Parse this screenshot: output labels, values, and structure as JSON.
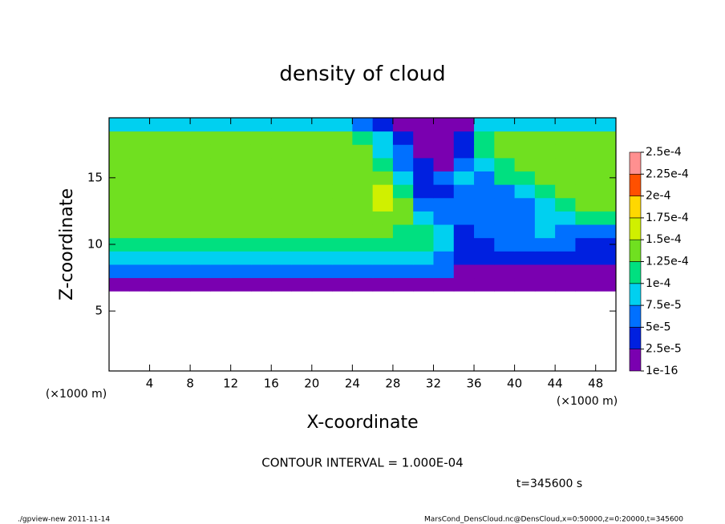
{
  "chart_data": {
    "type": "heatmap",
    "title": "density of cloud",
    "xlabel": "X-coordinate",
    "ylabel": "Z-coordinate",
    "xunit": "(×1000 m)",
    "yunit": "(×1000 m)",
    "note": "CONTOUR INTERVAL = 1.000E-04",
    "time": "t=345600 s",
    "footer_left": "./gpview-new  2011-11-14",
    "footer_right": "MarsCond_DensCloud.nc@DensCloud,x=0:50000,z=0:20000,t=345600",
    "xlim": [
      0,
      50
    ],
    "ylim": [
      0.5,
      19.5
    ],
    "xticks": [
      4,
      8,
      12,
      16,
      20,
      24,
      28,
      32,
      36,
      40,
      44,
      48
    ],
    "yticks": [
      5,
      10,
      15
    ],
    "x": [
      1,
      3,
      5,
      7,
      9,
      11,
      13,
      15,
      17,
      19,
      21,
      23,
      25,
      27,
      29,
      31,
      33,
      35,
      37,
      39,
      41,
      43,
      45,
      47,
      49
    ],
    "y": [
      7,
      8,
      9,
      10,
      11,
      12,
      13,
      14,
      15,
      16,
      17,
      18,
      19
    ],
    "values": [
      [
        1e-05,
        1e-05,
        1e-05,
        1e-05,
        1e-05,
        1e-05,
        1e-05,
        1e-05,
        1e-05,
        1e-05,
        1e-05,
        1e-05,
        1e-05,
        1e-05,
        1e-05,
        1e-05,
        1e-05,
        1e-05,
        1e-05,
        1e-05,
        1e-05,
        1e-05,
        1e-05,
        1e-05,
        1e-05
      ],
      [
        5e-05,
        5e-05,
        5e-05,
        5e-05,
        5e-05,
        5e-05,
        5e-05,
        5e-05,
        5e-05,
        5e-05,
        5e-05,
        5e-05,
        5e-05,
        5e-05,
        5e-05,
        5e-05,
        5e-05,
        2e-05,
        2e-05,
        2e-05,
        2e-05,
        2e-05,
        2e-05,
        2e-05,
        2e-05
      ],
      [
        8e-05,
        8e-05,
        8e-05,
        8e-05,
        8e-05,
        8e-05,
        8e-05,
        8e-05,
        8e-05,
        8e-05,
        8e-05,
        8e-05,
        8e-05,
        8e-05,
        8e-05,
        8e-05,
        6e-05,
        3e-05,
        4e-05,
        3e-05,
        3e-05,
        4e-05,
        3e-05,
        3e-05,
        3e-05
      ],
      [
        0.00011,
        0.00011,
        0.00011,
        0.00011,
        0.00011,
        0.00011,
        0.00011,
        0.00011,
        0.00011,
        0.00011,
        0.00011,
        0.00011,
        0.00011,
        0.00011,
        0.00011,
        0.0001,
        9e-05,
        3e-05,
        4e-05,
        5e-05,
        5e-05,
        6e-05,
        5e-05,
        4e-05,
        4e-05
      ],
      [
        0.00013,
        0.00013,
        0.00013,
        0.00013,
        0.00013,
        0.00013,
        0.00013,
        0.00013,
        0.00013,
        0.00013,
        0.00013,
        0.00013,
        0.00013,
        0.00013,
        0.00012,
        0.00012,
        8e-05,
        4e-05,
        5e-05,
        6e-05,
        6e-05,
        8e-05,
        7e-05,
        6e-05,
        7e-05
      ],
      [
        0.00013,
        0.00013,
        0.00013,
        0.00013,
        0.00013,
        0.00013,
        0.00013,
        0.00013,
        0.00013,
        0.00013,
        0.00013,
        0.00013,
        0.00013,
        0.00014,
        0.00014,
        9e-05,
        6e-05,
        6e-05,
        7e-05,
        6e-05,
        7e-05,
        9e-05,
        9e-05,
        0.0001,
        0.00012
      ],
      [
        0.00014,
        0.00014,
        0.00014,
        0.00014,
        0.00014,
        0.00014,
        0.00014,
        0.00014,
        0.00014,
        0.00014,
        0.00014,
        0.00014,
        0.00014,
        0.00016,
        0.00013,
        5e-05,
        5e-05,
        5e-05,
        6e-05,
        5e-05,
        5e-05,
        8e-05,
        0.00011,
        0.00013,
        0.00013
      ],
      [
        0.00014,
        0.00014,
        0.00014,
        0.00014,
        0.00014,
        0.00014,
        0.00014,
        0.00014,
        0.00014,
        0.00014,
        0.00014,
        0.00014,
        0.00014,
        0.00015,
        0.0001,
        3e-05,
        4e-05,
        7e-05,
        5e-05,
        6e-05,
        9e-05,
        0.00012,
        0.00013,
        0.00013,
        0.00013
      ],
      [
        0.00014,
        0.00014,
        0.00014,
        0.00014,
        0.00014,
        0.00014,
        0.00014,
        0.00014,
        0.00014,
        0.00014,
        0.00014,
        0.00014,
        0.00014,
        0.00014,
        8e-05,
        3e-05,
        5e-05,
        8e-05,
        5e-05,
        0.0001,
        0.00012,
        0.00013,
        0.00013,
        0.00013,
        0.00013
      ],
      [
        0.00014,
        0.00014,
        0.00014,
        0.00014,
        0.00014,
        0.00014,
        0.00014,
        0.00014,
        0.00014,
        0.00014,
        0.00014,
        0.00014,
        0.00014,
        0.00012,
        6e-05,
        3e-05,
        2e-05,
        6e-05,
        9e-05,
        0.00012,
        0.00013,
        0.00013,
        0.00013,
        0.00013,
        0.00013
      ],
      [
        0.00014,
        0.00014,
        0.00014,
        0.00014,
        0.00014,
        0.00014,
        0.00014,
        0.00014,
        0.00014,
        0.00014,
        0.00014,
        0.00014,
        0.00013,
        9e-05,
        5e-05,
        2e-05,
        1e-05,
        4e-05,
        0.0001,
        0.00013,
        0.00013,
        0.00013,
        0.00013,
        0.00013,
        0.00013
      ],
      [
        0.00013,
        0.00013,
        0.00013,
        0.00013,
        0.00013,
        0.00013,
        0.00013,
        0.00013,
        0.00013,
        0.00013,
        0.00013,
        0.00013,
        0.00012,
        8e-05,
        4e-05,
        1e-05,
        1e-05,
        3e-05,
        0.00012,
        0.00013,
        0.00013,
        0.00013,
        0.00013,
        0.00013,
        0.00013
      ],
      [
        9e-05,
        9e-05,
        9e-05,
        9e-05,
        9e-05,
        9e-05,
        9e-05,
        9e-05,
        9e-05,
        9e-05,
        9e-05,
        9e-05,
        7e-05,
        4e-05,
        2e-05,
        1e-05,
        1e-05,
        1e-05,
        9e-05,
        9e-05,
        9e-05,
        9e-05,
        9e-05,
        9e-05,
        9e-05
      ]
    ],
    "colorbar_ticks": [
      1e-16,
      {
        "value": 2.5e-05,
        "label": "2.5e-5"
      },
      {
        "value": 5e-05,
        "label": "5e-5"
      },
      {
        "value": 7.5e-05,
        "label": "7.5e-5"
      },
      {
        "value": 0.0001,
        "label": "1e-4"
      },
      {
        "value": 0.000125,
        "label": "1.25e-4"
      },
      {
        "value": 0.00015,
        "label": "1.5e-4"
      },
      {
        "value": 0.000175,
        "label": "1.75e-4"
      },
      {
        "value": 0.0002,
        "label": "2e-4"
      },
      {
        "value": 0.000225,
        "label": "2.25e-4"
      },
      {
        "value": 0.00025,
        "label": "2.5e-4"
      }
    ],
    "colors": [
      "#7a00b0",
      "#0020e0",
      "#0070ff",
      "#00d0f0",
      "#00e080",
      "#70e020",
      "#d0f000",
      "#ffd800",
      "#ff5000",
      "#ff9090"
    ]
  }
}
